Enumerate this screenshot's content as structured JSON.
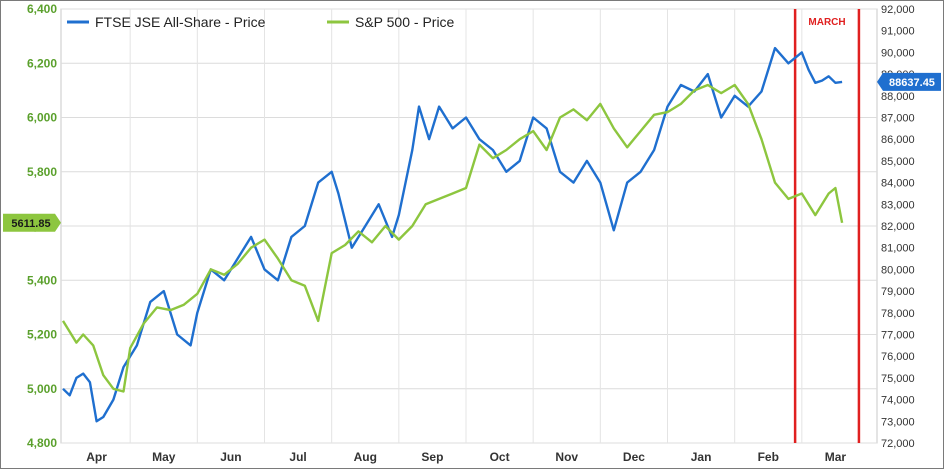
{
  "chart_data": {
    "type": "line",
    "title": "",
    "x_categories": [
      "Apr",
      "May",
      "Jun",
      "Jul",
      "Aug",
      "Sep",
      "Oct",
      "Nov",
      "Dec",
      "Jan",
      "Feb",
      "Mar"
    ],
    "y_left": {
      "ticks": [
        "4,800",
        "5,000",
        "5,200",
        "5,400",
        "5,600",
        "5,800",
        "6,000",
        "6,200",
        "6,400"
      ],
      "range": [
        4800,
        6400
      ],
      "color": "#5aa02c"
    },
    "y_right": {
      "ticks": [
        "72,000",
        "73,000",
        "74,000",
        "75,000",
        "76,000",
        "77,000",
        "78,000",
        "79,000",
        "80,000",
        "81,000",
        "82,000",
        "83,000",
        "84,000",
        "85,000",
        "86,000",
        "87,000",
        "88,000",
        "89,000",
        "90,000",
        "91,000",
        "92,000"
      ],
      "range": [
        72000,
        92000
      ],
      "color": "#333333"
    },
    "grid": true,
    "legend_position": "top-left",
    "series": [
      {
        "name": "FTSE JSE All-Share - Price",
        "axis": "right",
        "color": "#1f6fcf",
        "x": [
          0.0,
          0.1,
          0.2,
          0.3,
          0.4,
          0.5,
          0.6,
          0.75,
          0.9,
          1.0,
          1.1,
          1.3,
          1.5,
          1.7,
          1.9,
          2.0,
          2.2,
          2.4,
          2.6,
          2.8,
          3.0,
          3.2,
          3.4,
          3.6,
          3.8,
          4.0,
          4.1,
          4.3,
          4.5,
          4.7,
          4.9,
          5.0,
          5.2,
          5.3,
          5.45,
          5.6,
          5.8,
          6.0,
          6.2,
          6.4,
          6.6,
          6.8,
          7.0,
          7.2,
          7.4,
          7.6,
          7.8,
          8.0,
          8.2,
          8.4,
          8.6,
          8.8,
          9.0,
          9.2,
          9.4,
          9.6,
          9.8,
          10.0,
          10.2,
          10.4,
          10.6,
          10.8,
          11.0,
          11.1,
          11.2,
          11.3,
          11.4,
          11.5,
          11.6
        ],
        "y": [
          74.5,
          74.2,
          75.0,
          75.2,
          74.8,
          73.0,
          73.2,
          74.0,
          75.5,
          76.0,
          76.5,
          78.5,
          79.0,
          77.0,
          76.5,
          78.0,
          80.0,
          79.5,
          80.5,
          81.5,
          80.0,
          79.5,
          81.5,
          82.0,
          84.0,
          84.5,
          83.5,
          81.0,
          82.0,
          83.0,
          81.5,
          82.5,
          85.5,
          87.5,
          86.0,
          87.5,
          86.5,
          87.0,
          86.0,
          85.5,
          84.5,
          85.0,
          87.0,
          86.5,
          84.5,
          84.0,
          85.0,
          84.0,
          81.8,
          84.0,
          84.5,
          85.5,
          87.5,
          88.5,
          88.2,
          89.0,
          87.0,
          88.0,
          87.5,
          88.2,
          90.2,
          89.5,
          90.0,
          89.2,
          88.6,
          88.7,
          88.9,
          88.6,
          88.64
        ],
        "end_label": "88637.45"
      },
      {
        "name": "S&P 500 - Price",
        "axis": "left",
        "color": "#8dc63f",
        "x": [
          0.0,
          0.1,
          0.2,
          0.3,
          0.45,
          0.6,
          0.75,
          0.9,
          1.0,
          1.2,
          1.4,
          1.6,
          1.8,
          2.0,
          2.2,
          2.4,
          2.6,
          2.8,
          3.0,
          3.2,
          3.4,
          3.6,
          3.8,
          4.0,
          4.2,
          4.4,
          4.6,
          4.8,
          5.0,
          5.2,
          5.4,
          5.6,
          5.8,
          6.0,
          6.2,
          6.4,
          6.6,
          6.8,
          7.0,
          7.2,
          7.4,
          7.6,
          7.8,
          8.0,
          8.2,
          8.4,
          8.6,
          8.8,
          9.0,
          9.2,
          9.4,
          9.6,
          9.8,
          10.0,
          10.2,
          10.4,
          10.6,
          10.8,
          11.0,
          11.2,
          11.4,
          11.5,
          11.6
        ],
        "y": [
          5250,
          5210,
          5170,
          5200,
          5160,
          5050,
          5000,
          4990,
          5150,
          5240,
          5300,
          5290,
          5310,
          5350,
          5440,
          5420,
          5460,
          5520,
          5550,
          5480,
          5400,
          5380,
          5250,
          5500,
          5530,
          5580,
          5540,
          5600,
          5550,
          5600,
          5680,
          5700,
          5720,
          5740,
          5900,
          5850,
          5880,
          5920,
          5950,
          5880,
          6000,
          6030,
          5990,
          6050,
          5960,
          5890,
          5950,
          6010,
          6020,
          6050,
          6100,
          6120,
          6090,
          6120,
          6050,
          5920,
          5760,
          5700,
          5720,
          5640,
          5720,
          5740,
          5611.85
        ],
        "end_label": "5611.85"
      }
    ],
    "annotation": {
      "label": "MARCH",
      "x_from": 10.9,
      "x_to": 11.85,
      "color": "#e02020"
    }
  }
}
